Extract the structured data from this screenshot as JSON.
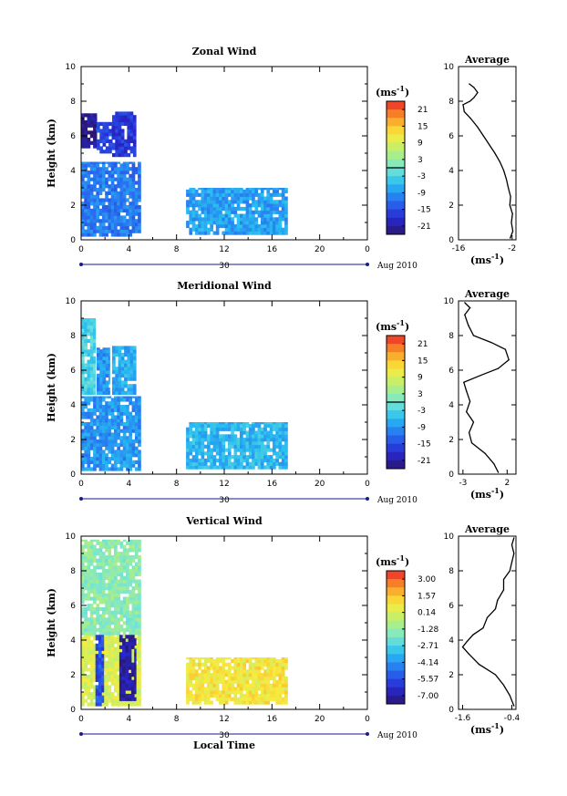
{
  "chart_data": [
    {
      "type": "heatmap",
      "title": "Zonal Wind",
      "ylabel": "Height (km)",
      "xlabel": "",
      "xlim": [
        0,
        24
      ],
      "ylim": [
        0,
        10
      ],
      "x_ticks": [
        "0",
        "4",
        "8",
        "12",
        "16",
        "20",
        "0"
      ],
      "y_ticks": [
        "0",
        "2",
        "4",
        "6",
        "8",
        "10"
      ],
      "date_day": "30",
      "date_suffix": "Aug 2010",
      "colorbar": {
        "unit": "(ms",
        "unit_exp": "-1",
        "ticks": [
          "21",
          "15",
          "9",
          "3",
          "-3",
          "-9",
          "-15",
          "-21"
        ],
        "range": [
          -24,
          24
        ],
        "zero_line": 0
      },
      "data_regions": [
        {
          "x": [
            0,
            5
          ],
          "y": [
            0.2,
            4.5
          ],
          "value": -11
        },
        {
          "x": [
            0,
            1.3
          ],
          "y": [
            5.3,
            7.3
          ],
          "value": -22
        },
        {
          "x": [
            1.3,
            2.6
          ],
          "y": [
            5.0,
            6.8
          ],
          "value": -16
        },
        {
          "x": [
            2.6,
            4.6
          ],
          "y": [
            4.8,
            7.4
          ],
          "value": -17
        },
        {
          "x": [
            8.8,
            17.3
          ],
          "y": [
            0.3,
            3.0
          ],
          "value": -8
        }
      ],
      "profile": {
        "title": "Average",
        "xlabel": "(ms",
        "xlabel_exp": "-1",
        "x_ticks": [
          "-16",
          "-2"
        ],
        "xlim": [
          -16,
          -1
        ],
        "ylim": [
          0,
          10
        ],
        "y_ticks": [
          "0",
          "2",
          "4",
          "6",
          "8",
          "10"
        ],
        "points": [
          [
            -2.5,
            0.1
          ],
          [
            -1.8,
            0.5
          ],
          [
            -2.2,
            1.0
          ],
          [
            -1.9,
            1.5
          ],
          [
            -2.6,
            2.0
          ],
          [
            -2.4,
            2.5
          ],
          [
            -3.0,
            3.0
          ],
          [
            -3.5,
            3.5
          ],
          [
            -4.2,
            4.0
          ],
          [
            -5.2,
            4.5
          ],
          [
            -6.5,
            5.0
          ],
          [
            -8.0,
            5.5
          ],
          [
            -9.5,
            6.0
          ],
          [
            -11.0,
            6.5
          ],
          [
            -12.8,
            7.0
          ],
          [
            -14.5,
            7.4
          ],
          [
            -14.8,
            7.8
          ],
          [
            -13.0,
            8.0
          ],
          [
            -12.0,
            8.2
          ],
          [
            -11.0,
            8.5
          ],
          [
            -12.0,
            8.8
          ],
          [
            -13.2,
            9.0
          ]
        ]
      }
    },
    {
      "type": "heatmap",
      "title": "Meridional Wind",
      "ylabel": "Height (km)",
      "xlabel": "",
      "xlim": [
        0,
        24
      ],
      "ylim": [
        0,
        10
      ],
      "x_ticks": [
        "0",
        "4",
        "8",
        "12",
        "16",
        "20",
        "0"
      ],
      "y_ticks": [
        "0",
        "2",
        "4",
        "6",
        "8",
        "10"
      ],
      "date_day": "30",
      "date_suffix": "Aug 2010",
      "colorbar": {
        "unit": "(ms",
        "unit_exp": "-1",
        "ticks": [
          "21",
          "15",
          "9",
          "3",
          "-3",
          "-9",
          "-15",
          "-21"
        ],
        "range": [
          -24,
          24
        ],
        "zero_line": 0
      },
      "data_regions": [
        {
          "x": [
            0,
            5
          ],
          "y": [
            0.2,
            4.5
          ],
          "value": -9
        },
        {
          "x": [
            0,
            1.2
          ],
          "y": [
            4.6,
            9.0
          ],
          "value": -3
        },
        {
          "x": [
            1.3,
            2.4
          ],
          "y": [
            4.6,
            7.3
          ],
          "value": -9
        },
        {
          "x": [
            2.6,
            4.6
          ],
          "y": [
            4.6,
            7.4
          ],
          "value": -7
        },
        {
          "x": [
            8.8,
            17.3
          ],
          "y": [
            0.3,
            3.0
          ],
          "value": -6
        }
      ],
      "profile": {
        "title": "Average",
        "xlabel": "(ms",
        "xlabel_exp": "-1",
        "x_ticks": [
          "-3",
          "2"
        ],
        "xlim": [
          -3.5,
          3
        ],
        "ylim": [
          0,
          10
        ],
        "y_ticks": [
          "0",
          "2",
          "4",
          "6",
          "8",
          "10"
        ],
        "points": [
          [
            1.0,
            0.1
          ],
          [
            0.5,
            0.6
          ],
          [
            -0.5,
            1.2
          ],
          [
            -2.0,
            1.8
          ],
          [
            -2.3,
            2.4
          ],
          [
            -1.8,
            3.0
          ],
          [
            -2.6,
            3.6
          ],
          [
            -2.2,
            4.2
          ],
          [
            -2.6,
            4.8
          ],
          [
            -2.9,
            5.3
          ],
          [
            -1.0,
            5.7
          ],
          [
            1.0,
            6.1
          ],
          [
            2.2,
            6.6
          ],
          [
            1.8,
            7.2
          ],
          [
            0.2,
            7.6
          ],
          [
            -1.8,
            8.0
          ],
          [
            -2.4,
            8.6
          ],
          [
            -2.8,
            9.2
          ],
          [
            -2.2,
            9.6
          ],
          [
            -2.8,
            9.9
          ]
        ]
      }
    },
    {
      "type": "heatmap",
      "title": "Vertical Wind",
      "ylabel": "Height (km)",
      "xlabel": "Local Time",
      "xlim": [
        0,
        24
      ],
      "ylim": [
        0,
        10
      ],
      "x_ticks": [
        "0",
        "4",
        "8",
        "12",
        "16",
        "20",
        "0"
      ],
      "y_ticks": [
        "0",
        "2",
        "4",
        "6",
        "8",
        "10"
      ],
      "date_day": "30",
      "date_suffix": "Aug 2010",
      "colorbar": {
        "unit": "(ms",
        "unit_exp": "-1",
        "ticks": [
          "3.00",
          "1.57",
          "0.14",
          "-1.28",
          "-2.71",
          "-4.14",
          "-5.57",
          "-7.00"
        ],
        "range": [
          -7.7,
          3.7
        ]
      },
      "data_regions": [
        {
          "x": [
            0,
            5
          ],
          "y": [
            0.2,
            4.3
          ],
          "value": 0.2
        },
        {
          "x": [
            0,
            5
          ],
          "y": [
            4.3,
            9.8
          ],
          "value": -1.5
        },
        {
          "x": [
            1.2,
            1.9
          ],
          "y": [
            0.2,
            4.3
          ],
          "value": -5.5
        },
        {
          "x": [
            3.2,
            4.6
          ],
          "y": [
            0.5,
            4.3
          ],
          "value": -7.0
        },
        {
          "x": [
            8.8,
            17.3
          ],
          "y": [
            0.3,
            3.0
          ],
          "value": 0.8
        }
      ],
      "profile": {
        "title": "Average",
        "xlabel": "(ms",
        "xlabel_exp": "-1",
        "x_ticks": [
          "-1.6",
          "-0.4"
        ],
        "xlim": [
          -1.7,
          -0.3
        ],
        "ylim": [
          0,
          10
        ],
        "y_ticks": [
          "0",
          "2",
          "4",
          "6",
          "8",
          "10"
        ],
        "points": [
          [
            -0.35,
            0.2
          ],
          [
            -0.45,
            0.8
          ],
          [
            -0.6,
            1.4
          ],
          [
            -0.8,
            2.0
          ],
          [
            -1.2,
            2.6
          ],
          [
            -1.45,
            3.2
          ],
          [
            -1.6,
            3.6
          ],
          [
            -1.5,
            3.9
          ],
          [
            -1.35,
            4.3
          ],
          [
            -1.1,
            4.7
          ],
          [
            -1.0,
            5.3
          ],
          [
            -0.8,
            5.8
          ],
          [
            -0.75,
            6.3
          ],
          [
            -0.6,
            6.9
          ],
          [
            -0.6,
            7.5
          ],
          [
            -0.45,
            8.0
          ],
          [
            -0.4,
            8.5
          ],
          [
            -0.35,
            9.0
          ],
          [
            -0.4,
            9.5
          ],
          [
            -0.35,
            9.9
          ]
        ]
      }
    }
  ]
}
